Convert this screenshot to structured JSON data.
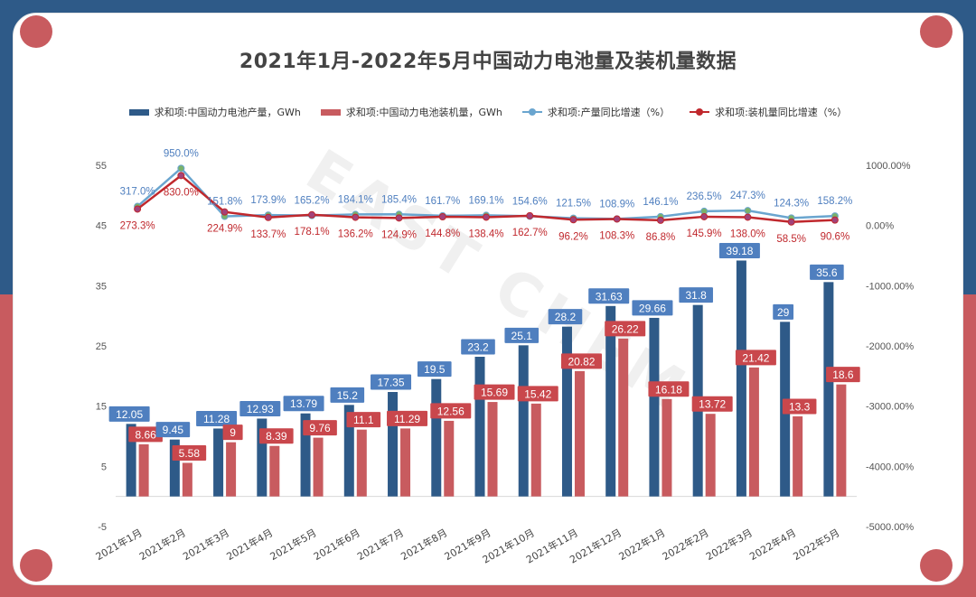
{
  "chart_data": {
    "type": "bar",
    "title": "2021年1月-2022年5月中国动力电池量及装机量数据",
    "watermark": "EAST CHEM",
    "categories": [
      "2021年1月",
      "2021年2月",
      "2021年3月",
      "2021年4月",
      "2021年5月",
      "2021年6月",
      "2021年7月",
      "2021年8月",
      "2021年9月",
      "2021年10月",
      "2021年11月",
      "2021年12月",
      "2022年1月",
      "2022年2月",
      "2022年3月",
      "2022年4月",
      "2022年5月"
    ],
    "series": [
      {
        "name": "求和项:中国动力电池产量，GWh",
        "kind": "bar",
        "axis": "left",
        "color": "#2e5a88",
        "values": [
          12.05,
          9.45,
          11.28,
          12.93,
          13.79,
          15.2,
          17.35,
          19.5,
          23.2,
          25.1,
          28.2,
          31.63,
          29.66,
          31.8,
          39.18,
          29,
          35.6
        ],
        "labels": [
          "12.05",
          "9.45",
          "11.28",
          "12.93",
          "13.79",
          "15.2",
          "17.35",
          "19.5",
          "23.2",
          "25.1",
          "28.2",
          "31.63",
          "29.66",
          "31.8",
          "39.18",
          "29",
          "35.6"
        ]
      },
      {
        "name": "求和项:中国动力电池装机量，GWh",
        "kind": "bar",
        "axis": "left",
        "color": "#c85b5f",
        "values": [
          8.66,
          5.58,
          9,
          8.39,
          9.76,
          11.1,
          11.29,
          12.56,
          15.69,
          15.42,
          20.82,
          26.22,
          16.18,
          13.72,
          21.42,
          13.3,
          18.6
        ],
        "labels": [
          "8.66",
          "5.58",
          "9",
          "8.39",
          "9.76",
          "11.1",
          "11.29",
          "12.56",
          "15.69",
          "15.42",
          "20.82",
          "26.22",
          "16.18",
          "13.72",
          "21.42",
          "13.3",
          "18.6"
        ]
      },
      {
        "name": "求和项:产量同比增速（%）",
        "kind": "line",
        "axis": "right",
        "color": "#6aa5cf",
        "values": [
          317.0,
          950.0,
          151.8,
          173.9,
          165.2,
          184.1,
          185.4,
          161.7,
          169.1,
          154.6,
          121.5,
          108.9,
          146.1,
          236.5,
          247.3,
          124.3,
          158.2
        ],
        "labels": [
          "317.0%",
          "950.0%",
          "151.8%",
          "173.9%",
          "165.2%",
          "184.1%",
          "185.4%",
          "161.7%",
          "169.1%",
          "154.6%",
          "121.5%",
          "108.9%",
          "146.1%",
          "236.5%",
          "247.3%",
          "124.3%",
          "158.2%"
        ]
      },
      {
        "name": "求和项:装机量同比增速（%）",
        "kind": "line",
        "axis": "right",
        "color": "#c0282d",
        "values": [
          273.3,
          830.0,
          224.9,
          133.7,
          178.1,
          136.2,
          124.9,
          144.8,
          138.4,
          162.7,
          96.2,
          108.3,
          86.8,
          145.9,
          138.0,
          58.5,
          90.6
        ],
        "labels": [
          "273.3%",
          "830.0%",
          "224.9%",
          "133.7%",
          "178.1%",
          "136.2%",
          "124.9%",
          "144.8%",
          "138.4%",
          "162.7%",
          "96.2%",
          "108.3%",
          "86.8%",
          "145.9%",
          "138.0%",
          "58.5%",
          "90.6%"
        ]
      }
    ],
    "y_left": {
      "min": -5,
      "max": 55,
      "ticks": [
        -5,
        5,
        15,
        25,
        35,
        45,
        55
      ],
      "tick_labels": [
        "-5",
        "5",
        "15",
        "25",
        "35",
        "45",
        "55"
      ]
    },
    "y_right": {
      "min": -5000,
      "max": 1000,
      "ticks": [
        -5000,
        -4000,
        -3000,
        -2000,
        -1000,
        0,
        1000
      ],
      "tick_labels": [
        "-5000.00%",
        "-4000.00%",
        "-3000.00%",
        "-2000.00%",
        "-1000.00%",
        "0.00%",
        "1000.00%"
      ]
    },
    "grid": false,
    "legend_position": "top"
  },
  "colors": {
    "frame_top": "#2e5a88",
    "frame_bottom": "#c85b5f",
    "accent_dot": "#c85b5f"
  }
}
